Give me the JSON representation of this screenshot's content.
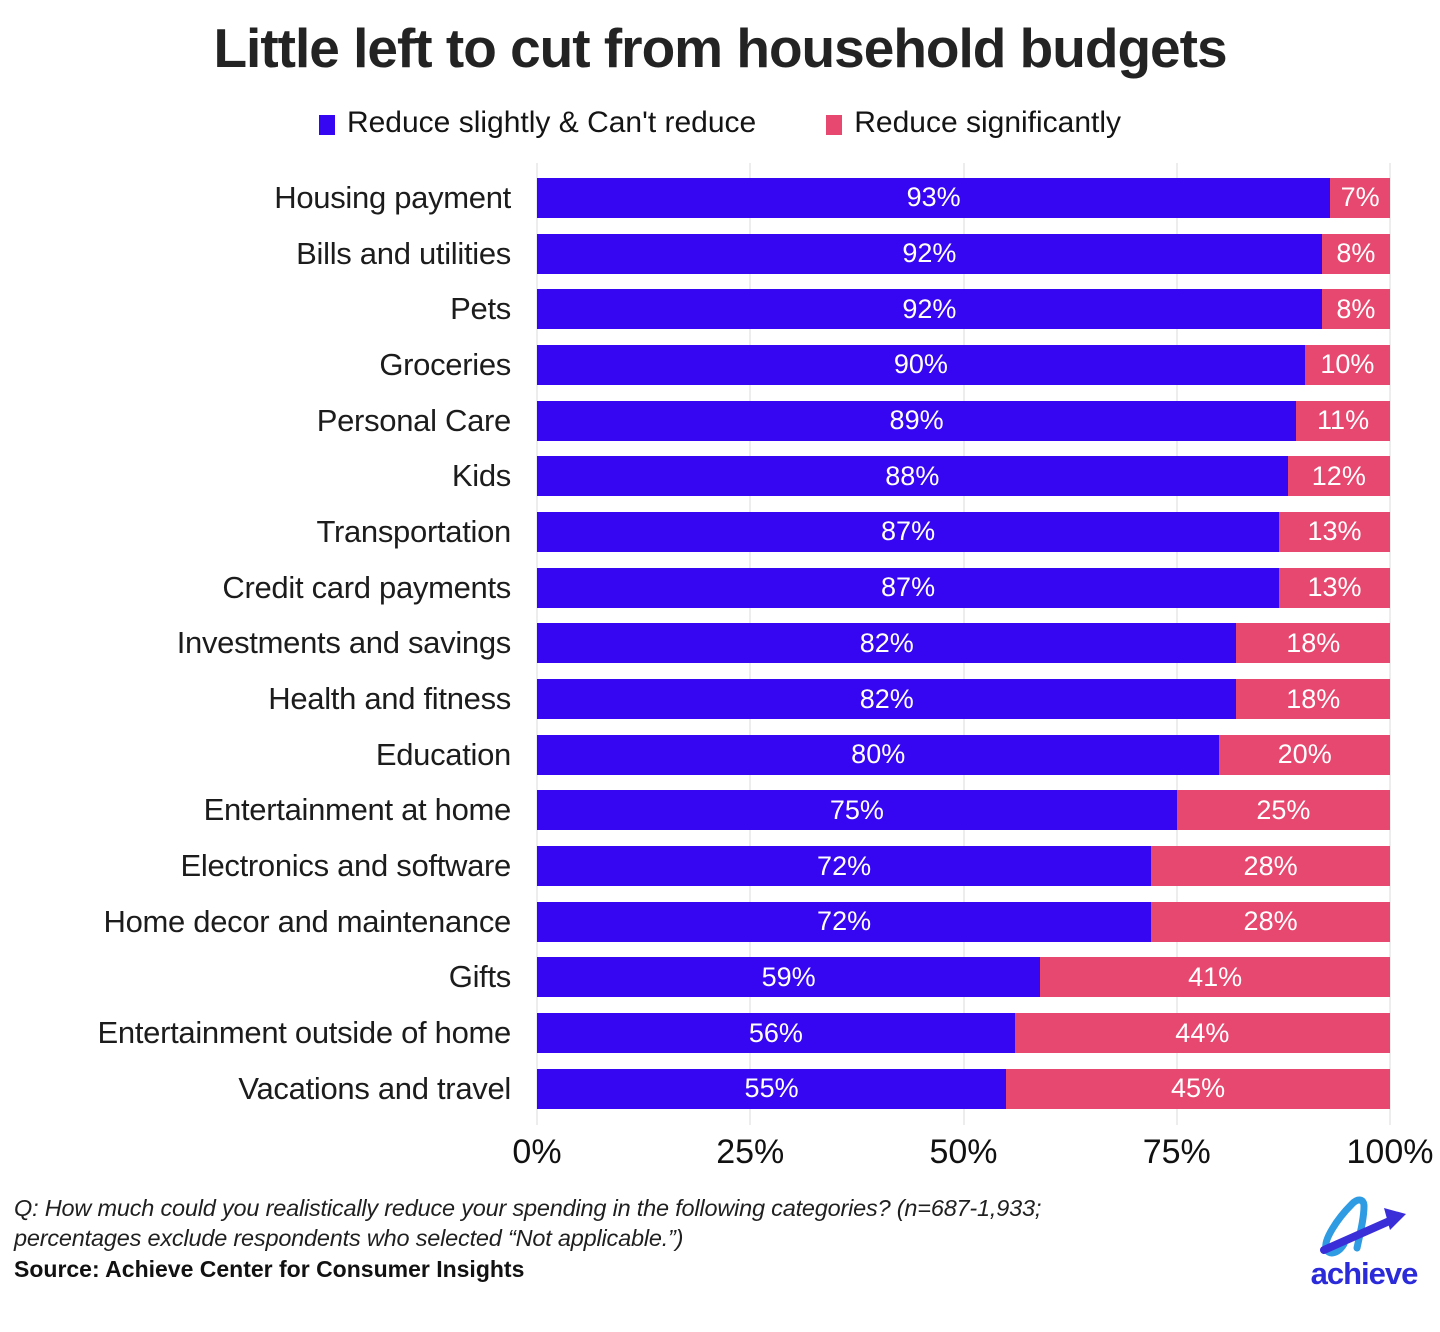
{
  "title": "Little left to cut from household budgets",
  "colors": {
    "bar_blue": "#3606F2",
    "bar_pink": "#E6486F",
    "gridline": "#EDEDED",
    "logo_wordmark_blue": "#2B2BD9",
    "logo_a_azure": "#2E9BE2",
    "logo_arrow_indigo": "#3A2ED9"
  },
  "chart_data": {
    "type": "bar",
    "stacked": true,
    "orientation": "horizontal",
    "title": "Little left to cut from household budgets",
    "categories": [
      "Housing payment",
      "Bills and utilities",
      "Pets",
      "Groceries",
      "Personal Care",
      "Kids",
      "Transportation",
      "Credit card payments",
      "Investments and savings",
      "Health and fitness",
      "Education",
      "Entertainment at home",
      "Electronics and software",
      "Home decor and maintenance",
      "Gifts",
      "Entertainment outside of home",
      "Vacations and travel"
    ],
    "series": [
      {
        "name": "Reduce slightly & Can't reduce",
        "color": "#3606F2",
        "values": [
          93,
          92,
          92,
          90,
          89,
          88,
          87,
          87,
          82,
          82,
          80,
          75,
          72,
          72,
          59,
          56,
          55
        ]
      },
      {
        "name": "Reduce significantly",
        "color": "#E6486F",
        "values": [
          7,
          8,
          8,
          10,
          11,
          12,
          13,
          13,
          18,
          18,
          20,
          25,
          28,
          28,
          41,
          44,
          45
        ]
      }
    ],
    "value_label_suffix": "%",
    "x_ticks": [
      "0%",
      "25%",
      "50%",
      "75%",
      "100%"
    ],
    "xlim": [
      0,
      100
    ],
    "gridline_positions": [
      0,
      25,
      50,
      75,
      100
    ],
    "legend_position": "top",
    "value_labels": "inside-white"
  },
  "footer": {
    "note_line1": "Q: How much could you realistically reduce your spending in the following categories? (n=687-1,933;",
    "note_line2": "percentages exclude respondents who selected “Not applicable.”)",
    "source": "Source: Achieve Center for Consumer Insights",
    "logo_text": "achieve"
  }
}
